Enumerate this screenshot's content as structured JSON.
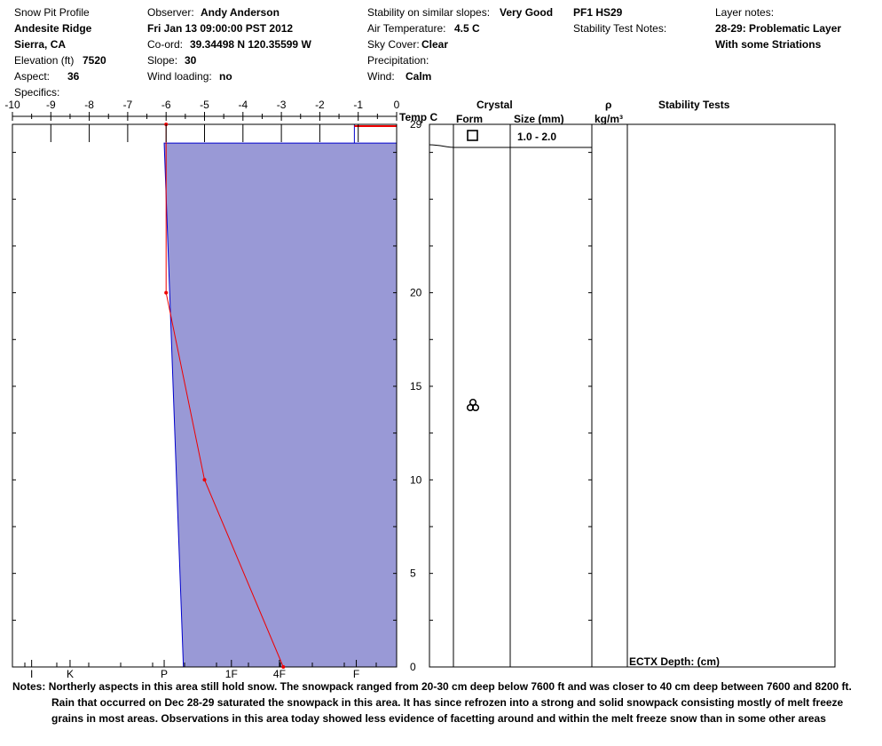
{
  "header": {
    "title": "Snow Pit Profile",
    "location": "Andesite Ridge",
    "region": "Sierra, CA",
    "elevation_label": "Elevation (ft)",
    "elevation_value": "7520",
    "aspect_label": "Aspect:",
    "aspect_value": "36",
    "specifics_label": "Specifics:",
    "observer_label": "Observer:",
    "observer_value": "Andy Anderson",
    "datetime": "Fri Jan 13 09:00:00 PST 2012",
    "coord_label": "Co-ord:",
    "coord_value": "39.34498 N 120.35599 W",
    "slope_label": "Slope:",
    "slope_value": "30",
    "wind_loading_label": "Wind loading:",
    "wind_loading_value": "no",
    "stability_label": "Stability on similar slopes:",
    "stability_value": "Very Good",
    "air_temp_label": "Air Temperature:",
    "air_temp_value": "4.5 C",
    "sky_label": "Sky Cover:",
    "sky_value": "Clear",
    "precip_label": "Precipitation:",
    "wind_label": "Wind:",
    "wind_value": "Calm",
    "pf": "PF1 HS29",
    "stability_notes_label": "Stability Test Notes:",
    "layer_notes_label": "Layer notes:",
    "layer_notes_line1": "28-29: Problematic Layer",
    "layer_notes_line2": "With some Striations"
  },
  "columns": {
    "crystal": "Crystal",
    "form": "Form",
    "size": "Size (mm)",
    "rho": "ρ",
    "density_unit": "kg/m³",
    "stability_tests": "Stability Tests",
    "temp_label": "Temp C"
  },
  "layers": [
    {
      "top": 29,
      "bottom": 28,
      "size": "1.0 - 2.0",
      "form": "faceted-square-icon"
    },
    {
      "top": 28,
      "bottom": 0,
      "size": "",
      "form": "melt-freeze-icon"
    }
  ],
  "stability_test": "ECTX  Depth: (cm)",
  "notes": {
    "label": "Notes:",
    "line1": "Northerly aspects in this area still hold snow. The snowpack ranged from 20-30 cm deep below 7600 ft and was closer to 40 cm deep between 7600 and 8200 ft.",
    "line2": "Rain that occurred on Dec 28-29 saturated the snowpack in this area. It has since refrozen into a strong and solid snowpack consisting mostly of melt freeze",
    "line3": "grains in most areas. Observations in this area today showed less evidence of facetting around and within the melt freeze snow than in some other areas"
  },
  "chart_data": {
    "type": "area",
    "x_axis": {
      "label": "Temp C",
      "range": [
        -10,
        0
      ],
      "ticks": [
        "-10",
        "-9",
        "-8",
        "-7",
        "-6",
        "-5",
        "-4",
        "-3",
        "-2",
        "-1",
        "0"
      ]
    },
    "y_axis": {
      "range": [
        0,
        29
      ],
      "ticks": [
        "0",
        "5",
        "10",
        "15",
        "20",
        "29"
      ]
    },
    "hardness_axis": {
      "ticks": [
        "I",
        "K",
        "P",
        "1F",
        "4F",
        "F"
      ]
    },
    "colors": {
      "hardness_fill": "#9999d6",
      "hardness_line": "#0000cc",
      "temperature": "#ee0000"
    },
    "series": [
      {
        "kind": "hardness",
        "points": [
          [
            -1.1,
            29
          ],
          [
            -1.1,
            28
          ],
          [
            0,
            28
          ],
          [
            0,
            0
          ],
          [
            -5.55,
            0
          ],
          [
            -6.05,
            28
          ],
          [
            -6.05,
            28
          ],
          [
            -1.1,
            28
          ],
          [
            -1.1,
            29
          ],
          [
            0,
            29
          ]
        ]
      },
      {
        "kind": "temperature",
        "points": [
          [
            -6.0,
            29
          ],
          [
            -6.0,
            20
          ],
          [
            -5.0,
            10
          ],
          [
            -2.95,
            0
          ]
        ]
      }
    ]
  }
}
